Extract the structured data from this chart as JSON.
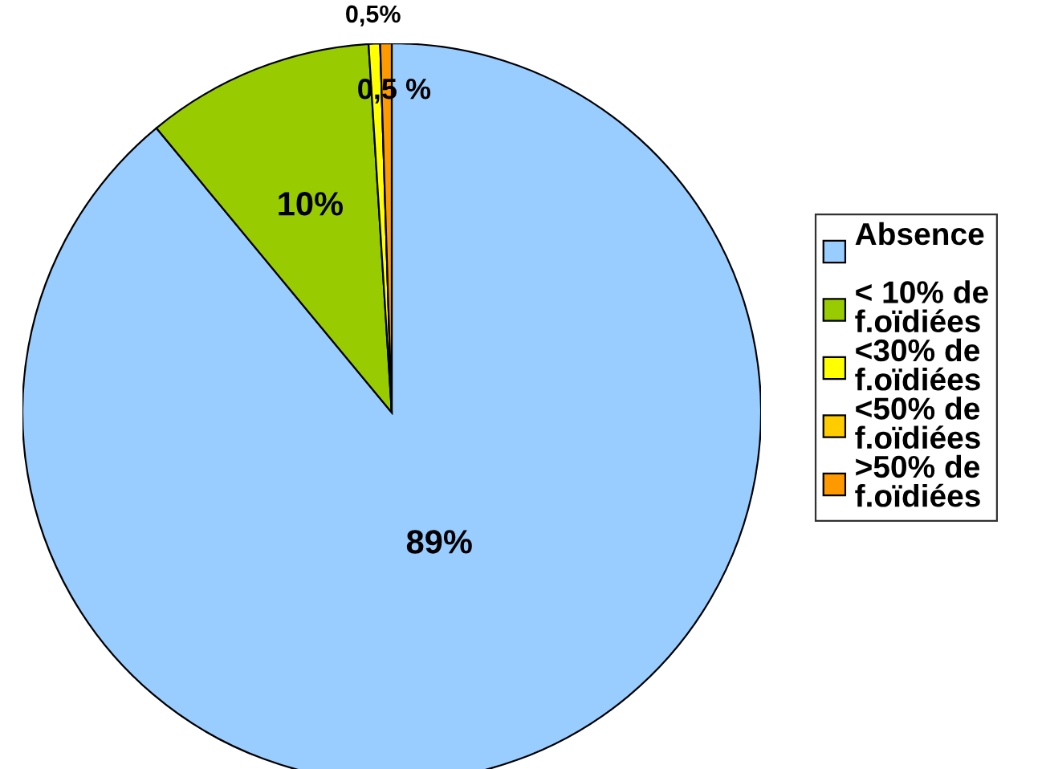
{
  "chart_data": {
    "type": "pie",
    "categories": [
      "Absence",
      "< 10% de f.oïdiées",
      "<30% de f.oïdiées",
      "<50% de f.oïdiées",
      ">50% de f.oïdiées"
    ],
    "values": [
      89,
      10,
      0.5,
      0,
      0.5
    ],
    "colors": [
      "#99ccff",
      "#99cc00",
      "#ffff00",
      "#ffcc00",
      "#ff9900"
    ],
    "value_labels": [
      "89%",
      "10%",
      "0,5%",
      null,
      "0,5 %"
    ],
    "legend": "right"
  }
}
